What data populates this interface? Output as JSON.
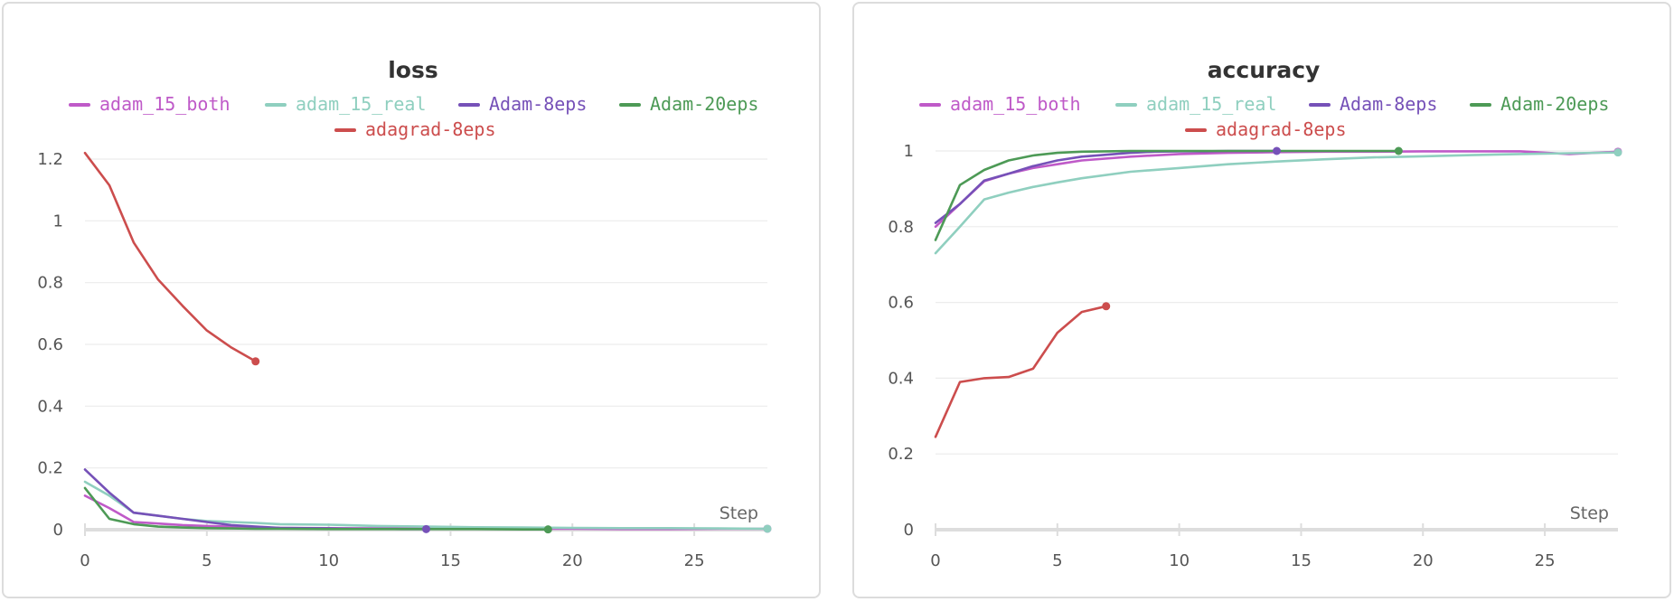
{
  "colors": {
    "adam_15_both": "#bf5ac8",
    "adam_15_real": "#8fcfbf",
    "Adam-8eps": "#7651b8",
    "Adam-20eps": "#4d9a56",
    "adagrad-8eps": "#cc4d4d"
  },
  "chart_data": [
    {
      "type": "line",
      "title": "loss",
      "xlabel": "Step",
      "ylabel": "",
      "xlim": [
        0,
        28
      ],
      "ylim": [
        0,
        1.2
      ],
      "x_ticks": [
        0,
        5,
        10,
        15,
        20,
        25
      ],
      "y_ticks": [
        0,
        0.2,
        0.4,
        0.6,
        0.8,
        1,
        1.2
      ],
      "grid": true,
      "legend": "top",
      "series": [
        {
          "name": "adam_15_both",
          "x": [
            0,
            1,
            2,
            3,
            4,
            5,
            6,
            7,
            8,
            10,
            12,
            14,
            16,
            18,
            20,
            22,
            24,
            26,
            28
          ],
          "y": [
            0.11,
            0.07,
            0.025,
            0.02,
            0.015,
            0.012,
            0.01,
            0.008,
            0.006,
            0.005,
            0.004,
            0.004,
            0.003,
            0.003,
            0.003,
            0.002,
            0.002,
            0.003,
            0.003
          ]
        },
        {
          "name": "adam_15_real",
          "x": [
            0,
            1,
            2,
            3,
            4,
            5,
            6,
            7,
            8,
            10,
            12,
            14,
            16,
            18,
            20,
            22,
            24,
            26,
            28
          ],
          "y": [
            0.155,
            0.11,
            0.055,
            0.045,
            0.035,
            0.028,
            0.025,
            0.022,
            0.018,
            0.016,
            0.012,
            0.01,
            0.008,
            0.007,
            0.006,
            0.005,
            0.005,
            0.004,
            0.003
          ]
        },
        {
          "name": "Adam-8eps",
          "x": [
            0,
            1,
            2,
            3,
            4,
            5,
            6,
            7,
            8,
            9,
            10,
            11,
            12,
            13,
            14
          ],
          "y": [
            0.195,
            0.12,
            0.055,
            0.045,
            0.035,
            0.025,
            0.015,
            0.01,
            0.006,
            0.005,
            0.004,
            0.003,
            0.003,
            0.002,
            0.002
          ]
        },
        {
          "name": "Adam-20eps",
          "x": [
            0,
            1,
            2,
            3,
            4,
            5,
            6,
            7,
            8,
            10,
            12,
            14,
            16,
            18,
            19
          ],
          "y": [
            0.135,
            0.035,
            0.018,
            0.01,
            0.007,
            0.005,
            0.004,
            0.003,
            0.003,
            0.002,
            0.002,
            0.002,
            0.002,
            0.001,
            0.001
          ]
        },
        {
          "name": "adagrad-8eps",
          "x": [
            0,
            1,
            2,
            3,
            4,
            5,
            6,
            7
          ],
          "y": [
            1.22,
            1.115,
            0.93,
            0.81,
            0.725,
            0.645,
            0.59,
            0.545
          ]
        }
      ]
    },
    {
      "type": "line",
      "title": "accuracy",
      "xlabel": "Step",
      "ylabel": "",
      "xlim": [
        0,
        28
      ],
      "ylim": [
        0,
        1
      ],
      "x_ticks": [
        0,
        5,
        10,
        15,
        20,
        25
      ],
      "y_ticks": [
        0,
        0.2,
        0.4,
        0.6,
        0.8,
        1
      ],
      "grid": true,
      "legend": "top",
      "series": [
        {
          "name": "adam_15_both",
          "x": [
            0,
            1,
            2,
            3,
            4,
            5,
            6,
            8,
            10,
            12,
            14,
            16,
            18,
            20,
            22,
            24,
            26,
            28
          ],
          "y": [
            0.8,
            0.86,
            0.92,
            0.94,
            0.955,
            0.965,
            0.975,
            0.985,
            0.992,
            0.995,
            0.997,
            0.998,
            0.998,
            0.999,
            0.999,
            0.999,
            0.992,
            0.998
          ]
        },
        {
          "name": "adam_15_real",
          "x": [
            0,
            1,
            2,
            3,
            4,
            5,
            6,
            8,
            10,
            12,
            14,
            16,
            18,
            20,
            22,
            24,
            26,
            28
          ],
          "y": [
            0.73,
            0.8,
            0.872,
            0.89,
            0.905,
            0.917,
            0.928,
            0.945,
            0.955,
            0.965,
            0.972,
            0.978,
            0.983,
            0.986,
            0.989,
            0.992,
            0.994,
            0.996
          ]
        },
        {
          "name": "Adam-8eps",
          "x": [
            0,
            1,
            2,
            3,
            4,
            5,
            6,
            7,
            8,
            9,
            10,
            11,
            12,
            13,
            14
          ],
          "y": [
            0.81,
            0.86,
            0.922,
            0.94,
            0.96,
            0.975,
            0.985,
            0.99,
            0.995,
            0.998,
            0.999,
            0.999,
            1.0,
            1.0,
            1.0
          ]
        },
        {
          "name": "Adam-20eps",
          "x": [
            0,
            1,
            2,
            3,
            4,
            5,
            6,
            7,
            8,
            10,
            12,
            14,
            16,
            18,
            19
          ],
          "y": [
            0.765,
            0.91,
            0.95,
            0.975,
            0.988,
            0.995,
            0.998,
            0.999,
            1.0,
            1.0,
            1.0,
            1.0,
            1.0,
            1.0,
            1.0
          ]
        },
        {
          "name": "adagrad-8eps",
          "x": [
            0,
            1,
            2,
            3,
            4,
            5,
            6,
            7
          ],
          "y": [
            0.245,
            0.39,
            0.4,
            0.403,
            0.425,
            0.52,
            0.575,
            0.59
          ]
        }
      ]
    }
  ]
}
